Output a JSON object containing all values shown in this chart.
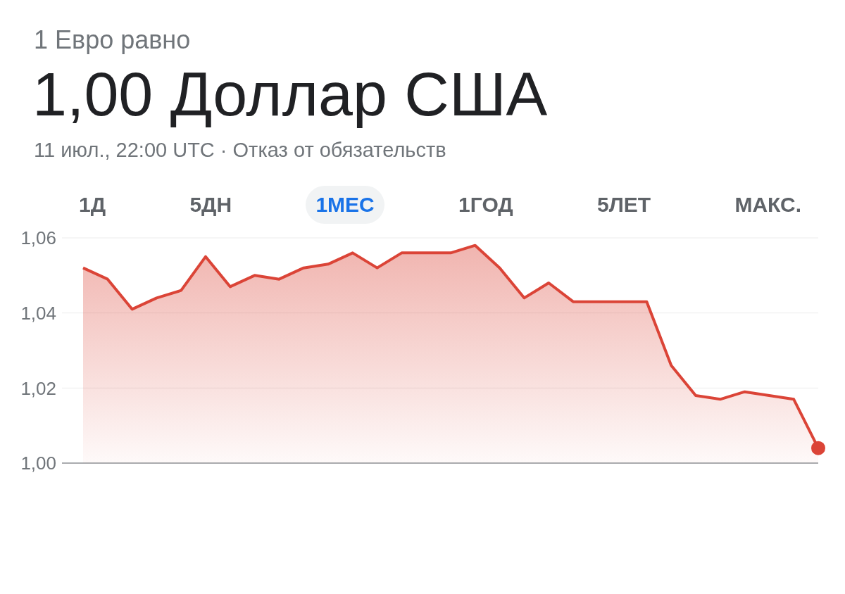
{
  "chart_data": {
    "type": "area",
    "subtitle": "1 Евро равно",
    "title": "1,00 Доллар США",
    "annotations": [
      "11 июл., 22:00 UTC · Отказ от обязательств",
      "1Д",
      "5ДН",
      "1МЕС",
      "1ГОД",
      "5ЛЕТ",
      "МАКС."
    ],
    "categories": [
      null,
      null,
      null,
      null,
      null,
      null,
      null,
      null,
      null,
      null,
      null,
      null,
      null,
      null,
      null,
      null,
      null,
      null,
      null,
      null,
      null,
      null,
      null,
      null,
      null,
      null,
      null,
      null,
      null,
      null,
      null
    ],
    "series": [
      {
        "color": "#db4437",
        "values": [
          1.052,
          1.049,
          1.041,
          1.044,
          1.046,
          1.055,
          1.047,
          1.05,
          1.049,
          1.052,
          1.053,
          1.056,
          1.052,
          1.056,
          1.056,
          1.056,
          1.058,
          1.052,
          1.044,
          1.048,
          1.043,
          1.043,
          1.043,
          1.043,
          1.026,
          1.018,
          1.017,
          1.019,
          1.018,
          1.017,
          1.004
        ]
      }
    ],
    "ylim": [
      1.0,
      1.06
    ],
    "yticks": [
      {
        "value": 1.0,
        "label": "1,00"
      },
      {
        "value": 1.02,
        "label": "1,02"
      },
      {
        "value": 1.04,
        "label": "1,04"
      },
      {
        "value": 1.06,
        "label": "1,06"
      }
    ],
    "grid": "y",
    "legend": false,
    "marker": "none",
    "line_style": "solid"
  }
}
